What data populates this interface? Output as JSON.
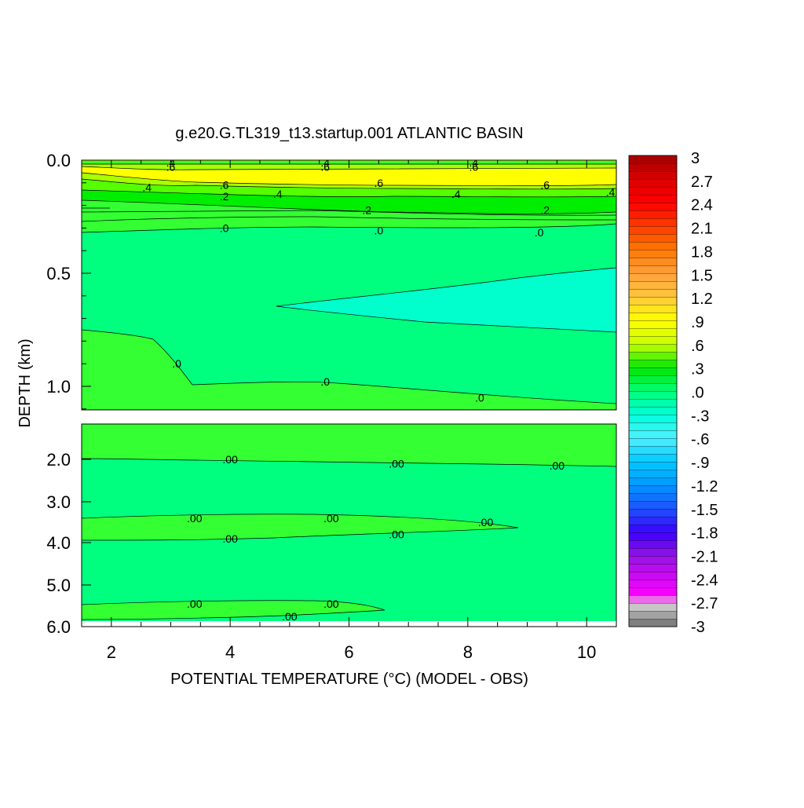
{
  "chart_data": {
    "type": "heatmap",
    "title": "g.e20.G.TL319_t13.startup.001 ATLANTIC BASIN",
    "xlabel": "POTENTIAL TEMPERATURE (°C) (MODEL - OBS)",
    "ylabel": "DEPTH (km)",
    "xlim": [
      1.5,
      10.5
    ],
    "x_ticks": [
      2,
      4,
      6,
      8,
      10
    ],
    "upper_panel": {
      "ylim": [
        0.0,
        1.1
      ],
      "y_ticks": [
        0.0,
        0.5,
        1.0
      ],
      "y_tick_labels": [
        "0.0",
        "0.5",
        "1.0"
      ]
    },
    "lower_panel": {
      "ylim": [
        1.5,
        6.0
      ],
      "y_ticks": [
        2.0,
        3.0,
        4.0,
        5.0,
        6.0
      ],
      "y_tick_labels": [
        "2.0",
        "3.0",
        "4.0",
        "5.0",
        "6.0"
      ]
    },
    "colorbar": {
      "min": -3,
      "max": 3,
      "levels": 60,
      "labels": [
        "3",
        "2.7",
        "2.4",
        "2.1",
        "1.8",
        "1.5",
        "1.2",
        ".9",
        ".6",
        ".3",
        ".0",
        "-.3",
        "-.6",
        "-.9",
        "-1.2",
        "-1.5",
        "-1.8",
        "-2.1",
        "-2.4",
        "-2.7",
        "-3"
      ]
    },
    "contour_labels_upper": [
      {
        "text": ".4",
        "x": 3.0,
        "depth": 0.01
      },
      {
        "text": ".6",
        "x": 3.0,
        "depth": 0.03
      },
      {
        "text": ".4",
        "x": 5.6,
        "depth": 0.01
      },
      {
        "text": ".6",
        "x": 5.6,
        "depth": 0.03
      },
      {
        "text": ".4",
        "x": 8.1,
        "depth": 0.01
      },
      {
        "text": ".6",
        "x": 8.1,
        "depth": 0.03
      },
      {
        "text": ".4",
        "x": 2.6,
        "depth": 0.12
      },
      {
        "text": ".6",
        "x": 3.9,
        "depth": 0.11
      },
      {
        "text": ".2",
        "x": 3.9,
        "depth": 0.16
      },
      {
        "text": ".4",
        "x": 4.8,
        "depth": 0.15
      },
      {
        "text": ".6",
        "x": 6.5,
        "depth": 0.1
      },
      {
        "text": ".4",
        "x": 7.8,
        "depth": 0.15
      },
      {
        "text": ".6",
        "x": 9.3,
        "depth": 0.11
      },
      {
        "text": ".4",
        "x": 10.4,
        "depth": 0.14
      },
      {
        "text": ".2",
        "x": 6.3,
        "depth": 0.22
      },
      {
        "text": ".2",
        "x": 9.3,
        "depth": 0.22
      },
      {
        "text": ".0",
        "x": 3.9,
        "depth": 0.3
      },
      {
        "text": ".0",
        "x": 6.5,
        "depth": 0.31
      },
      {
        "text": ".0",
        "x": 9.2,
        "depth": 0.32
      },
      {
        "text": ".0",
        "x": 3.1,
        "depth": 0.9
      },
      {
        "text": ".0",
        "x": 5.6,
        "depth": 0.98
      },
      {
        "text": ".0",
        "x": 8.2,
        "depth": 1.05
      }
    ],
    "contour_labels_lower": [
      {
        "text": ".00",
        "x": 4.0,
        "depth": 2.0
      },
      {
        "text": ".00",
        "x": 6.8,
        "depth": 2.1
      },
      {
        "text": ".00",
        "x": 9.5,
        "depth": 2.15
      },
      {
        "text": ".00",
        "x": 3.4,
        "depth": 3.4
      },
      {
        "text": ".00",
        "x": 5.7,
        "depth": 3.4
      },
      {
        "text": ".00",
        "x": 8.3,
        "depth": 3.5
      },
      {
        "text": ".00",
        "x": 4.0,
        "depth": 3.9
      },
      {
        "text": ".00",
        "x": 6.8,
        "depth": 3.8
      },
      {
        "text": ".00",
        "x": 3.4,
        "depth": 5.45
      },
      {
        "text": ".00",
        "x": 5.7,
        "depth": 5.45
      },
      {
        "text": ".00",
        "x": 5.0,
        "depth": 5.75
      }
    ]
  }
}
